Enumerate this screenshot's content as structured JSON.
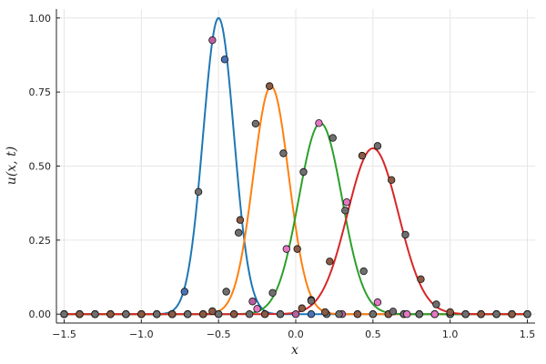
{
  "chart_data": {
    "type": "line",
    "title": "",
    "xlabel": "x",
    "ylabel": "u(x, t)",
    "xlim": [
      -1.55,
      1.55
    ],
    "ylim": [
      -0.03,
      1.03
    ],
    "x_ticks": [
      -1.5,
      -1.0,
      -0.5,
      0.0,
      0.5,
      1.0,
      1.5
    ],
    "x_tick_labels": [
      "−1.5",
      "−1.0",
      "−0.5",
      "0.0",
      "0.5",
      "1.0",
      "1.5"
    ],
    "y_ticks": [
      0.0,
      0.25,
      0.5,
      0.75,
      1.0
    ],
    "y_tick_labels": [
      "0.00",
      "0.25",
      "0.50",
      "0.75",
      "1.00"
    ],
    "grid": true,
    "legend": "none",
    "series": [
      {
        "color": "#1f77b4",
        "curve": {
          "amplitude": 1.0,
          "center": -0.5,
          "sigma": 0.1
        },
        "points": [
          [
            -1.5,
            0.0
          ],
          [
            -1.4,
            0.0
          ],
          [
            -1.3,
            0.0
          ],
          [
            -1.2,
            0.0
          ],
          [
            -1.1,
            0.0
          ],
          [
            -1.0,
            0.0
          ],
          [
            -0.9,
            0.0
          ],
          [
            -0.8,
            0.0
          ],
          [
            -0.72,
            0.076
          ],
          [
            -0.63,
            0.413
          ],
          [
            -0.54,
            0.925
          ],
          [
            -0.46,
            0.86
          ],
          [
            -0.37,
            0.275
          ],
          [
            -0.28,
            0.043
          ],
          [
            -0.2,
            0.0
          ],
          [
            -0.1,
            0.0
          ],
          [
            0.0,
            0.0
          ],
          [
            0.1,
            0.0
          ],
          [
            0.2,
            0.0
          ],
          [
            0.3,
            0.0
          ],
          [
            0.4,
            0.0
          ],
          [
            0.5,
            0.0
          ],
          [
            0.6,
            0.0
          ],
          [
            0.7,
            0.0
          ],
          [
            0.8,
            0.0
          ],
          [
            0.9,
            0.0
          ],
          [
            1.0,
            0.0
          ],
          [
            1.1,
            0.0
          ],
          [
            1.2,
            0.0
          ],
          [
            1.3,
            0.0
          ],
          [
            1.4,
            0.0
          ],
          [
            1.5,
            0.0
          ]
        ],
        "marker_colors": [
          "#6f6f6f",
          "#b8609f",
          "#4a73b5"
        ]
      },
      {
        "color": "#ff7f0e",
        "curve": {
          "amplitude": 0.77,
          "center": -0.16,
          "sigma": 0.115
        },
        "points": [
          [
            -1.5,
            0.0
          ],
          [
            -1.4,
            0.0
          ],
          [
            -1.3,
            0.0
          ],
          [
            -1.2,
            0.0
          ],
          [
            -1.1,
            0.0
          ],
          [
            -1.0,
            0.0
          ],
          [
            -0.9,
            0.0
          ],
          [
            -0.8,
            0.0
          ],
          [
            -0.7,
            0.0
          ],
          [
            -0.6,
            0.0
          ],
          [
            -0.54,
            0.01
          ],
          [
            -0.45,
            0.076
          ],
          [
            -0.36,
            0.318
          ],
          [
            -0.26,
            0.643
          ],
          [
            -0.17,
            0.77
          ],
          [
            -0.08,
            0.543
          ],
          [
            0.01,
            0.22
          ],
          [
            0.1,
            0.048
          ],
          [
            0.19,
            0.007
          ],
          [
            0.28,
            0.0
          ],
          [
            0.4,
            0.0
          ],
          [
            0.5,
            0.0
          ],
          [
            0.6,
            0.0
          ],
          [
            0.7,
            0.0
          ],
          [
            0.8,
            0.0
          ],
          [
            0.9,
            0.0
          ],
          [
            1.0,
            0.0
          ],
          [
            1.1,
            0.0
          ],
          [
            1.2,
            0.0
          ],
          [
            1.3,
            0.0
          ],
          [
            1.4,
            0.0
          ],
          [
            1.5,
            0.0
          ]
        ],
        "marker_colors": [
          "#8a5a44",
          "#6f6f6f"
        ]
      },
      {
        "color": "#2ca02c",
        "curve": {
          "amplitude": 0.645,
          "center": 0.16,
          "sigma": 0.14
        },
        "points": [
          [
            -1.5,
            0.0
          ],
          [
            -1.4,
            0.0
          ],
          [
            -1.3,
            0.0
          ],
          [
            -1.2,
            0.0
          ],
          [
            -1.1,
            0.0
          ],
          [
            -1.0,
            0.0
          ],
          [
            -0.9,
            0.0
          ],
          [
            -0.8,
            0.0
          ],
          [
            -0.7,
            0.0
          ],
          [
            -0.6,
            0.0
          ],
          [
            -0.5,
            0.0
          ],
          [
            -0.4,
            0.0
          ],
          [
            -0.25,
            0.018
          ],
          [
            -0.15,
            0.072
          ],
          [
            -0.06,
            0.22
          ],
          [
            0.05,
            0.48
          ],
          [
            0.15,
            0.645
          ],
          [
            0.24,
            0.595
          ],
          [
            0.33,
            0.378
          ],
          [
            0.44,
            0.145
          ],
          [
            0.53,
            0.04
          ],
          [
            0.63,
            0.009
          ],
          [
            0.72,
            0.0
          ],
          [
            0.8,
            0.0
          ],
          [
            0.9,
            0.0
          ],
          [
            1.0,
            0.0
          ],
          [
            1.1,
            0.0
          ],
          [
            1.2,
            0.0
          ],
          [
            1.3,
            0.0
          ],
          [
            1.4,
            0.0
          ],
          [
            1.5,
            0.0
          ]
        ],
        "marker_colors": [
          "#e377c2",
          "#6f6f6f"
        ]
      },
      {
        "color": "#d62728",
        "curve": {
          "amplitude": 0.56,
          "center": 0.5,
          "sigma": 0.165
        },
        "points": [
          [
            -1.5,
            0.0
          ],
          [
            -1.4,
            0.0
          ],
          [
            -1.3,
            0.0
          ],
          [
            -1.2,
            0.0
          ],
          [
            -1.1,
            0.0
          ],
          [
            -1.0,
            0.0
          ],
          [
            -0.9,
            0.0
          ],
          [
            -0.8,
            0.0
          ],
          [
            -0.7,
            0.0
          ],
          [
            -0.6,
            0.0
          ],
          [
            -0.5,
            0.0
          ],
          [
            -0.4,
            0.0
          ],
          [
            -0.3,
            0.0
          ],
          [
            -0.2,
            0.0
          ],
          [
            -0.1,
            0.0
          ],
          [
            0.04,
            0.02
          ],
          [
            0.1,
            0.045
          ],
          [
            0.22,
            0.178
          ],
          [
            0.32,
            0.35
          ],
          [
            0.43,
            0.535
          ],
          [
            0.53,
            0.568
          ],
          [
            0.62,
            0.453
          ],
          [
            0.71,
            0.268
          ],
          [
            0.81,
            0.118
          ],
          [
            0.91,
            0.033
          ],
          [
            1.0,
            0.007
          ],
          [
            1.1,
            0.0
          ],
          [
            1.2,
            0.0
          ],
          [
            1.3,
            0.0
          ],
          [
            1.4,
            0.0
          ],
          [
            1.5,
            0.0
          ]
        ],
        "marker_colors": [
          "#6f6f6f",
          "#8a5a44"
        ]
      }
    ]
  }
}
